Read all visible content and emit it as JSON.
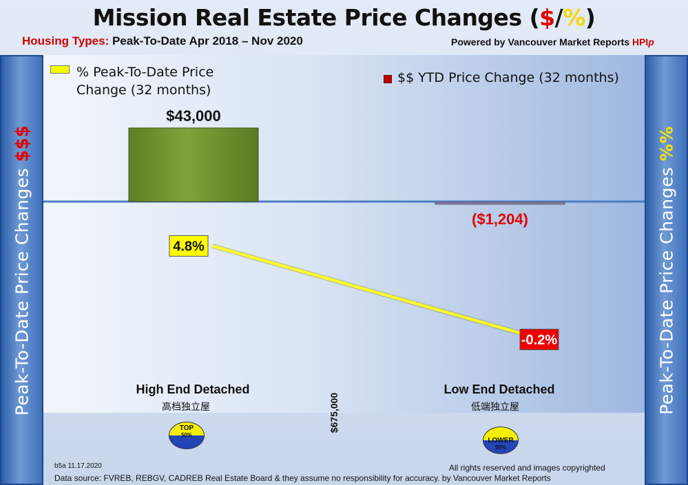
{
  "header": {
    "title_prefix": "Mission Real Estate Price Changes (",
    "title_dollar": "$",
    "title_slash": "/",
    "title_pct": "%",
    "title_suffix": ")",
    "subtitle_label": "Housing Types:",
    "subtitle_text": " Peak-To-Date Apr 2018 – Nov 2020",
    "powered_prefix": "Powered by Vancouver Market Reports ",
    "powered_hpi": "HPI",
    "powered_p": "p"
  },
  "side_panels": {
    "left_text": "Peak-To-Date Price Changes ",
    "left_accent": "$$$",
    "right_text": "Peak-To-Date  Price  Changes  ",
    "right_accent": "%%"
  },
  "legend": {
    "pct_label": "% Peak-To-Date Price Change (32 months)",
    "dollar_label": "$$ YTD Price Change (32 months)"
  },
  "colors": {
    "bar_positive": "#7fa33a",
    "line": "#ffff2a",
    "pct_positive_bg": "#ffff00",
    "pct_negative_bg": "#ee0000",
    "dollar_negative_text": "#e30000",
    "baseline": "#4a7cc0"
  },
  "chart_data": {
    "type": "bar",
    "categories": [
      "High End Detached",
      "Low End Detached"
    ],
    "categories_sub": [
      "高档独立屋",
      "低端独立屋"
    ],
    "series": [
      {
        "name": "$$ YTD Price Change (32 months)",
        "values": [
          43000,
          -1204
        ],
        "labels": [
          "$43,000",
          "($1,204)"
        ]
      },
      {
        "name": "% Peak-To-Date Price Change (32 months)",
        "kind": "line",
        "values": [
          4.8,
          -0.2
        ],
        "labels": [
          "4.8%",
          "-0.2%"
        ]
      }
    ],
    "dollar_range": [
      -5000,
      50000
    ],
    "pct_range": [
      -1.5,
      6.3
    ],
    "divider_label": "$675,000",
    "title": "Mission Real Estate Price Changes ($/%)"
  },
  "badges": {
    "top_line1": "TOP",
    "top_line2": "50%",
    "lower_line1": "LOWER",
    "lower_line2": "50%"
  },
  "footer": {
    "version": "b5a 11.17.2020",
    "rights": "All rights reserved and  images copyrighted",
    "source": "Data source: FVREB, REBGV, CADREB Real Estate Board & they assume no responsibility for accuracy. by Vancouver Market Reports"
  }
}
